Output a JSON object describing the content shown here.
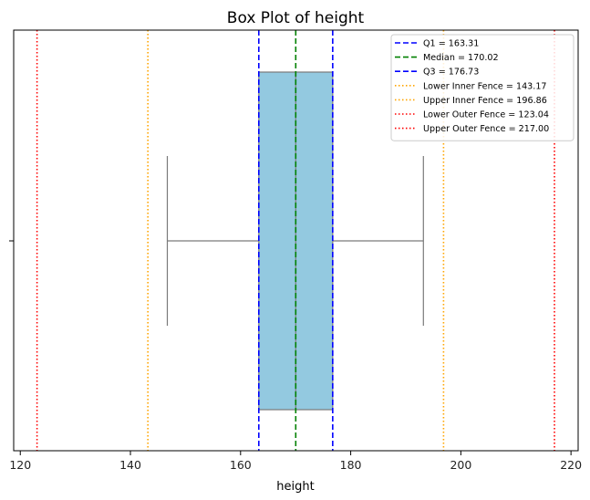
{
  "chart_data": {
    "type": "box",
    "title": "Box Plot of height",
    "xlabel": "height",
    "ylabel": "",
    "xlim": [
      118.8,
      221.3
    ],
    "xticks": [
      120,
      140,
      160,
      180,
      200,
      220
    ],
    "grid": false,
    "legend_position": "top-right",
    "box": {
      "whisker_low": 146.7,
      "q1": 163.31,
      "median": 170.02,
      "q3": 176.73,
      "whisker_high": 193.2,
      "fill_color": "#93c9e0",
      "line_color": "#7a7a7a"
    },
    "reference_lines": [
      {
        "label": "Q1 = 163.31",
        "value": 163.31,
        "color": "#0000ff",
        "style": "dashed"
      },
      {
        "label": "Median = 170.02",
        "value": 170.02,
        "color": "#008000",
        "style": "dashed"
      },
      {
        "label": "Q3 = 176.73",
        "value": 176.73,
        "color": "#0000ff",
        "style": "dashed"
      },
      {
        "label": "Lower Inner Fence = 143.17",
        "value": 143.17,
        "color": "#ffa500",
        "style": "dotted"
      },
      {
        "label": "Upper Inner Fence = 196.86",
        "value": 196.86,
        "color": "#ffa500",
        "style": "dotted"
      },
      {
        "label": "Lower Outer Fence = 123.04",
        "value": 123.04,
        "color": "#ff0000",
        "style": "dotted"
      },
      {
        "label": "Upper Outer Fence = 217.00",
        "value": 217.0,
        "color": "#ff0000",
        "style": "dotted"
      }
    ]
  }
}
